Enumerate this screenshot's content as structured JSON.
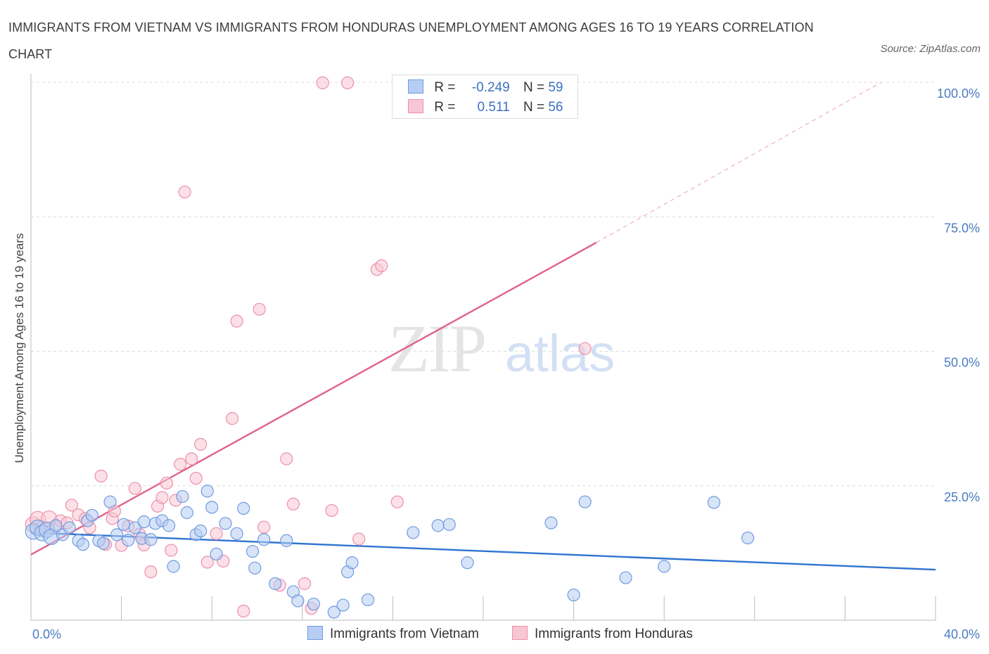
{
  "header": {
    "title": "IMMIGRANTS FROM VIETNAM VS IMMIGRANTS FROM HONDURAS UNEMPLOYMENT AMONG AGES 16 TO 19 YEARS CORRELATION CHART",
    "source": "Source: ZipAtlas.com"
  },
  "watermark": {
    "zip": "ZIP",
    "atlas": "atlas"
  },
  "legend": {
    "r_label": "R =",
    "n_label": "N =",
    "rows": [
      {
        "r": "-0.249",
        "n": "59"
      },
      {
        "r": "0.511",
        "n": "56"
      }
    ]
  },
  "chart_data": {
    "type": "scatter",
    "ylabel": "Unemployment Among Ages 16 to 19 years",
    "xlim": [
      0,
      40
    ],
    "ylim": [
      0,
      100
    ],
    "x_tick_labels": [
      {
        "value": 0,
        "label": "0.0%"
      },
      {
        "value": 40,
        "label": "40.0%"
      }
    ],
    "y_tick_labels": [
      {
        "value": 25,
        "label": "25.0%"
      },
      {
        "value": 50,
        "label": "50.0%"
      },
      {
        "value": 75,
        "label": "75.0%"
      },
      {
        "value": 100,
        "label": "100.0%"
      }
    ],
    "grid": true,
    "legend_position": "top-center",
    "series": [
      {
        "name": "Immigrants from Vietnam",
        "color": "#6f9be0",
        "fill": "#b7cdf3",
        "trend": {
          "x": [
            0,
            40
          ],
          "y": [
            16.3,
            9.4
          ],
          "color": "#2f74d0"
        },
        "points": [
          [
            0.1,
            16.5
          ],
          [
            0.3,
            17.2
          ],
          [
            0.5,
            16.2
          ],
          [
            0.7,
            16.8
          ],
          [
            0.9,
            15.5
          ],
          [
            1.1,
            17.6
          ],
          [
            1.4,
            15.9
          ],
          [
            1.7,
            17.2
          ],
          [
            2.1,
            14.8
          ],
          [
            2.3,
            14.1
          ],
          [
            2.5,
            18.5
          ],
          [
            2.7,
            19.5
          ],
          [
            3.0,
            14.8
          ],
          [
            3.2,
            14.3
          ],
          [
            3.5,
            22.0
          ],
          [
            3.8,
            15.9
          ],
          [
            4.1,
            17.8
          ],
          [
            4.3,
            14.9
          ],
          [
            4.6,
            17.2
          ],
          [
            4.9,
            15.2
          ],
          [
            5.0,
            18.3
          ],
          [
            5.3,
            15.0
          ],
          [
            5.5,
            18.0
          ],
          [
            5.8,
            18.5
          ],
          [
            6.1,
            17.6
          ],
          [
            6.3,
            10.0
          ],
          [
            6.7,
            23.0
          ],
          [
            6.9,
            20.0
          ],
          [
            7.3,
            15.9
          ],
          [
            7.5,
            16.6
          ],
          [
            7.8,
            24.0
          ],
          [
            8.0,
            21.0
          ],
          [
            8.2,
            12.3
          ],
          [
            8.6,
            18.0
          ],
          [
            9.1,
            16.1
          ],
          [
            9.4,
            20.8
          ],
          [
            9.8,
            12.8
          ],
          [
            9.9,
            9.7
          ],
          [
            10.3,
            15.0
          ],
          [
            10.8,
            6.8
          ],
          [
            11.3,
            14.8
          ],
          [
            11.6,
            5.3
          ],
          [
            11.8,
            3.6
          ],
          [
            12.5,
            3.0
          ],
          [
            13.4,
            1.5
          ],
          [
            13.8,
            2.8
          ],
          [
            14.0,
            9.0
          ],
          [
            14.2,
            10.7
          ],
          [
            14.9,
            3.8
          ],
          [
            16.9,
            16.3
          ],
          [
            18.0,
            17.6
          ],
          [
            18.5,
            17.8
          ],
          [
            19.3,
            10.7
          ],
          [
            23.0,
            18.1
          ],
          [
            24.0,
            4.7
          ],
          [
            24.5,
            22.0
          ],
          [
            26.3,
            7.9
          ],
          [
            28.0,
            10.0
          ],
          [
            30.2,
            21.9
          ],
          [
            31.7,
            15.3
          ]
        ]
      },
      {
        "name": "Immigrants from Honduras",
        "color": "#ee8fab",
        "fill": "#f7c6d4",
        "trend": {
          "x": [
            0,
            25
          ],
          "y": [
            12.2,
            70.2
          ],
          "color": "#e0628a",
          "dashed_extension": {
            "x": [
              25,
              37.6
            ],
            "y": [
              70.2,
              100
            ]
          }
        },
        "points": [
          [
            0.1,
            17.8
          ],
          [
            0.3,
            18.8
          ],
          [
            0.5,
            17.0
          ],
          [
            0.8,
            18.9
          ],
          [
            1.1,
            17.3
          ],
          [
            1.3,
            18.5
          ],
          [
            1.6,
            18.1
          ],
          [
            1.8,
            21.4
          ],
          [
            2.1,
            19.6
          ],
          [
            2.4,
            18.9
          ],
          [
            2.6,
            17.2
          ],
          [
            3.1,
            26.8
          ],
          [
            3.3,
            14.1
          ],
          [
            3.6,
            18.9
          ],
          [
            3.7,
            20.3
          ],
          [
            4.0,
            13.9
          ],
          [
            4.3,
            17.5
          ],
          [
            4.6,
            24.5
          ],
          [
            4.8,
            16.0
          ],
          [
            5.0,
            14.0
          ],
          [
            5.3,
            9.0
          ],
          [
            5.6,
            21.2
          ],
          [
            5.8,
            22.8
          ],
          [
            6.0,
            25.5
          ],
          [
            6.2,
            13.0
          ],
          [
            6.4,
            22.3
          ],
          [
            6.6,
            29.0
          ],
          [
            6.8,
            79.6
          ],
          [
            7.1,
            30.0
          ],
          [
            7.3,
            26.4
          ],
          [
            7.5,
            32.7
          ],
          [
            7.8,
            10.8
          ],
          [
            8.2,
            16.1
          ],
          [
            8.5,
            11.0
          ],
          [
            8.9,
            37.5
          ],
          [
            9.1,
            55.6
          ],
          [
            9.4,
            1.7
          ],
          [
            10.1,
            57.8
          ],
          [
            10.3,
            17.3
          ],
          [
            11.0,
            6.5
          ],
          [
            11.3,
            30.0
          ],
          [
            11.6,
            21.6
          ],
          [
            12.1,
            6.8
          ],
          [
            12.4,
            2.2
          ],
          [
            12.9,
            99.9
          ],
          [
            13.3,
            20.4
          ],
          [
            14.0,
            99.9
          ],
          [
            14.5,
            15.1
          ],
          [
            15.3,
            65.2
          ],
          [
            15.5,
            65.9
          ],
          [
            16.2,
            22.0
          ],
          [
            24.5,
            50.5
          ]
        ]
      }
    ]
  },
  "bottom_legend": [
    {
      "label": "Immigrants from Vietnam"
    },
    {
      "label": "Immigrants from Honduras"
    }
  ]
}
